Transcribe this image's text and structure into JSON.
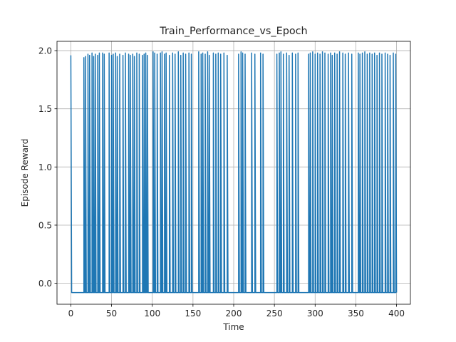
{
  "chart_data": {
    "type": "line",
    "title": "Train_Performance_vs_Epoch",
    "xlabel": "Time",
    "ylabel": "Episode Reward",
    "xlim": [
      -17,
      417
    ],
    "ylim": [
      -0.18,
      2.08
    ],
    "xticks": [
      0,
      50,
      100,
      150,
      200,
      250,
      300,
      350,
      400
    ],
    "xtick_labels": [
      "0",
      "50",
      "100",
      "150",
      "200",
      "250",
      "300",
      "350",
      "400"
    ],
    "yticks": [
      0.0,
      0.5,
      1.0,
      1.5,
      2.0
    ],
    "ytick_labels": [
      "0.0",
      "0.5",
      "1.0",
      "1.5",
      "2.0"
    ],
    "grid": true,
    "series": [
      {
        "color": "#1f77b4",
        "low": -0.08,
        "high_times": [
          0,
          16,
          18,
          21,
          23,
          26,
          28,
          30,
          33,
          35,
          39,
          41,
          47,
          50,
          52,
          55,
          57,
          60,
          64,
          67,
          71,
          73,
          76,
          78,
          81,
          84,
          88,
          90,
          92,
          94,
          101,
          103,
          106,
          110,
          112,
          115,
          117,
          121,
          125,
          128,
          132,
          135,
          138,
          141,
          145,
          148,
          157,
          160,
          162,
          165,
          168,
          170,
          175,
          178,
          181,
          184,
          188,
          192,
          206,
          209,
          211,
          214,
          222,
          226,
          233,
          236,
          253,
          256,
          258,
          261,
          265,
          268,
          272,
          276,
          279,
          292,
          294,
          297,
          300,
          303,
          306,
          309,
          312,
          316,
          319,
          321,
          324,
          327,
          330,
          334,
          337,
          341,
          345,
          353,
          355,
          358,
          361,
          364,
          367,
          370,
          373,
          376,
          379,
          382,
          386,
          389,
          392,
          396,
          399
        ],
        "high_values": [
          1.96,
          1.94,
          1.95,
          1.97,
          1.96,
          1.98,
          1.95,
          1.97,
          1.96,
          1.98,
          1.98,
          1.97,
          1.98,
          1.96,
          1.97,
          1.98,
          1.95,
          1.97,
          1.96,
          1.98,
          1.97,
          1.96,
          1.97,
          1.95,
          1.98,
          1.97,
          1.96,
          1.97,
          1.98,
          1.96,
          1.99,
          1.98,
          1.97,
          1.98,
          1.99,
          1.97,
          1.98,
          1.96,
          1.98,
          1.97,
          1.99,
          1.96,
          1.98,
          1.97,
          1.98,
          1.97,
          1.99,
          1.97,
          1.98,
          1.97,
          1.99,
          1.96,
          1.98,
          1.97,
          1.98,
          1.97,
          1.98,
          1.96,
          1.97,
          1.99,
          1.98,
          1.97,
          1.98,
          1.97,
          1.98,
          1.97,
          1.97,
          1.98,
          1.99,
          1.97,
          1.98,
          1.96,
          1.98,
          1.97,
          1.98,
          1.97,
          1.98,
          1.99,
          1.97,
          1.98,
          1.97,
          1.99,
          1.98,
          1.97,
          1.98,
          1.96,
          1.98,
          1.97,
          1.99,
          1.98,
          1.97,
          1.98,
          1.97,
          1.98,
          1.97,
          1.98,
          1.99,
          1.97,
          1.98,
          1.97,
          1.98,
          1.96,
          1.98,
          1.97,
          1.98,
          1.97,
          1.96,
          1.98,
          1.97
        ]
      }
    ]
  }
}
